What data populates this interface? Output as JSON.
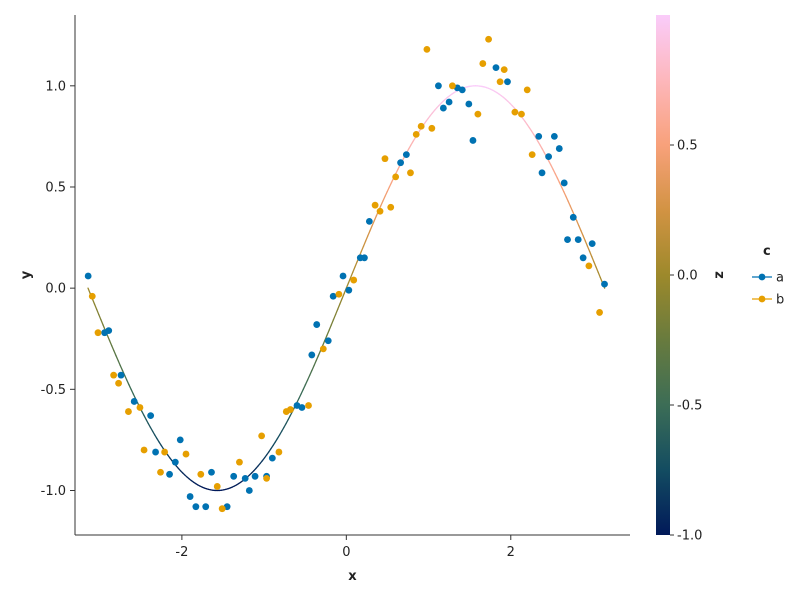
{
  "chart_data": {
    "type": "scatter",
    "xlabel": "x",
    "ylabel": "y",
    "xlim": [
      -3.3,
      3.45
    ],
    "ylim": [
      -1.22,
      1.35
    ],
    "xticks": [
      -2,
      0,
      2
    ],
    "xtick_labels": [
      "-2",
      "0",
      "2"
    ],
    "yticks": [
      -1.0,
      -0.5,
      0.0,
      0.5,
      1.0
    ],
    "ytick_labels": [
      "-1.0",
      "-0.5",
      "0.0",
      "0.5",
      "1.0"
    ],
    "grid": false,
    "curve": {
      "function": "sin(x)",
      "x_range": [
        -3.1416,
        3.1416
      ],
      "colorscale": {
        "name": "batlow",
        "colors": [
          "#011959",
          "#134c61",
          "#3c6d56",
          "#687b3e",
          "#9d892b",
          "#d29343",
          "#f8a17b",
          "#fdb7bc",
          "#faccfa"
        ]
      }
    },
    "colorbar": {
      "label": "z",
      "range": [
        -1.0,
        1.0
      ],
      "ticks": [
        -1.0,
        -0.5,
        0.0,
        0.5
      ],
      "tick_labels": [
        "-1.0",
        "-0.5",
        "0.0",
        "0.5"
      ]
    },
    "legend": {
      "title": "c",
      "position": "right",
      "entries": [
        {
          "name": "a",
          "color": "#0072b2"
        },
        {
          "name": "b",
          "color": "#e69f00"
        }
      ]
    },
    "series": [
      {
        "name": "a",
        "color": "#0072b2",
        "points": [
          [
            -3.14,
            0.06
          ],
          [
            -2.94,
            -0.22
          ],
          [
            -2.89,
            -0.21
          ],
          [
            -2.74,
            -0.43
          ],
          [
            -2.58,
            -0.56
          ],
          [
            -2.38,
            -0.63
          ],
          [
            -2.32,
            -0.81
          ],
          [
            -2.15,
            -0.92
          ],
          [
            -2.08,
            -0.86
          ],
          [
            -2.02,
            -0.75
          ],
          [
            -1.9,
            -1.03
          ],
          [
            -1.83,
            -1.08
          ],
          [
            -1.71,
            -1.08
          ],
          [
            -1.64,
            -0.91
          ],
          [
            -1.45,
            -1.08
          ],
          [
            -1.37,
            -0.93
          ],
          [
            -1.23,
            -0.94
          ],
          [
            -1.18,
            -1.0
          ],
          [
            -1.11,
            -0.93
          ],
          [
            -0.97,
            -0.93
          ],
          [
            -0.9,
            -0.84
          ],
          [
            -0.6,
            -0.58
          ],
          [
            -0.54,
            -0.59
          ],
          [
            -0.42,
            -0.33
          ],
          [
            -0.36,
            -0.18
          ],
          [
            -0.22,
            -0.26
          ],
          [
            -0.16,
            -0.04
          ],
          [
            -0.04,
            0.06
          ],
          [
            0.03,
            -0.01
          ],
          [
            0.17,
            0.15
          ],
          [
            0.22,
            0.15
          ],
          [
            0.28,
            0.33
          ],
          [
            0.66,
            0.62
          ],
          [
            0.73,
            0.66
          ],
          [
            1.12,
            1.0
          ],
          [
            1.18,
            0.89
          ],
          [
            1.25,
            0.92
          ],
          [
            1.35,
            0.99
          ],
          [
            1.41,
            0.98
          ],
          [
            1.49,
            0.91
          ],
          [
            1.54,
            0.73
          ],
          [
            1.82,
            1.09
          ],
          [
            1.96,
            1.02
          ],
          [
            2.34,
            0.75
          ],
          [
            2.38,
            0.57
          ],
          [
            2.46,
            0.65
          ],
          [
            2.53,
            0.75
          ],
          [
            2.59,
            0.69
          ],
          [
            2.65,
            0.52
          ],
          [
            2.69,
            0.24
          ],
          [
            2.76,
            0.35
          ],
          [
            2.82,
            0.24
          ],
          [
            2.88,
            0.15
          ],
          [
            2.99,
            0.22
          ],
          [
            3.14,
            0.02
          ]
        ]
      },
      {
        "name": "b",
        "color": "#e69f00",
        "points": [
          [
            -3.09,
            -0.04
          ],
          [
            -3.02,
            -0.22
          ],
          [
            -2.83,
            -0.43
          ],
          [
            -2.77,
            -0.47
          ],
          [
            -2.65,
            -0.61
          ],
          [
            -2.51,
            -0.59
          ],
          [
            -2.46,
            -0.8
          ],
          [
            -2.26,
            -0.91
          ],
          [
            -2.21,
            -0.81
          ],
          [
            -1.95,
            -0.82
          ],
          [
            -1.77,
            -0.92
          ],
          [
            -1.57,
            -0.98
          ],
          [
            -1.51,
            -1.09
          ],
          [
            -1.3,
            -0.86
          ],
          [
            -1.03,
            -0.73
          ],
          [
            -0.97,
            -0.94
          ],
          [
            -0.82,
            -0.81
          ],
          [
            -0.73,
            -0.61
          ],
          [
            -0.68,
            -0.6
          ],
          [
            -0.46,
            -0.58
          ],
          [
            -0.28,
            -0.3
          ],
          [
            -0.09,
            -0.03
          ],
          [
            0.09,
            0.04
          ],
          [
            0.35,
            0.41
          ],
          [
            0.41,
            0.38
          ],
          [
            0.47,
            0.64
          ],
          [
            0.54,
            0.4
          ],
          [
            0.6,
            0.55
          ],
          [
            0.78,
            0.57
          ],
          [
            0.85,
            0.76
          ],
          [
            0.91,
            0.8
          ],
          [
            0.98,
            1.18
          ],
          [
            1.04,
            0.79
          ],
          [
            1.29,
            1.0
          ],
          [
            1.6,
            0.86
          ],
          [
            1.66,
            1.11
          ],
          [
            1.73,
            1.23
          ],
          [
            1.87,
            1.02
          ],
          [
            1.92,
            1.08
          ],
          [
            2.05,
            0.87
          ],
          [
            2.13,
            0.86
          ],
          [
            2.2,
            0.98
          ],
          [
            2.26,
            0.66
          ],
          [
            2.95,
            0.11
          ],
          [
            3.08,
            -0.12
          ]
        ]
      }
    ]
  }
}
